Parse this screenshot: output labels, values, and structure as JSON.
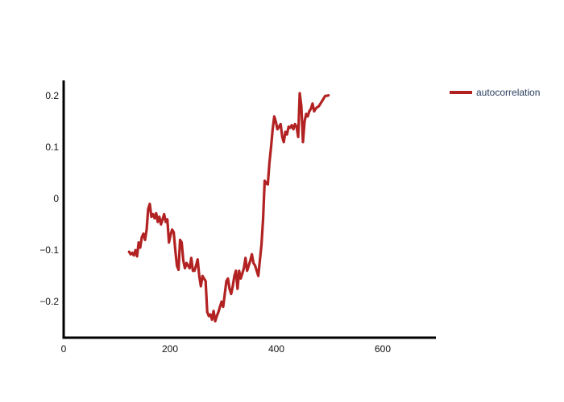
{
  "chart_data": {
    "type": "line",
    "title": "",
    "xlabel": "",
    "ylabel": "",
    "xlim": [
      0,
      700
    ],
    "ylim": [
      -0.27,
      0.23
    ],
    "x_ticks": [
      0,
      200,
      400,
      600
    ],
    "x_tick_labels": [
      "0",
      "200",
      "400",
      "600"
    ],
    "y_ticks": [
      -0.2,
      -0.1,
      0,
      0.1,
      0.2
    ],
    "y_tick_labels": [
      "−0.2",
      "−0.1",
      "0",
      "0.1",
      "0.2"
    ],
    "grid": false,
    "legend_position": "top-right",
    "series": [
      {
        "name": "autocorrelation",
        "color": "#b22222",
        "x": [
          123,
          126,
          129,
          132,
          135,
          138,
          141,
          144,
          147,
          150,
          153,
          156,
          159,
          162,
          165,
          168,
          171,
          174,
          177,
          180,
          183,
          186,
          189,
          192,
          195,
          198,
          201,
          204,
          207,
          210,
          213,
          216,
          219,
          222,
          225,
          228,
          231,
          234,
          237,
          240,
          243,
          246,
          249,
          252,
          255,
          258,
          261,
          264,
          267,
          270,
          273,
          276,
          279,
          282,
          285,
          288,
          291,
          294,
          297,
          300,
          303,
          306,
          309,
          312,
          315,
          318,
          321,
          324,
          327,
          330,
          333,
          336,
          339,
          342,
          345,
          348,
          351,
          354,
          357,
          360,
          363,
          366,
          369,
          372,
          375,
          378,
          381,
          384,
          387,
          390,
          393,
          396,
          399,
          402,
          405,
          408,
          411,
          414,
          417,
          420,
          423,
          426,
          429,
          432,
          435,
          438,
          441,
          444,
          447,
          450,
          453,
          456,
          459,
          462,
          465,
          468,
          471,
          474,
          477,
          480,
          483,
          486,
          489,
          492,
          495,
          498
        ],
        "values": [
          -0.103,
          -0.108,
          -0.105,
          -0.11,
          -0.1,
          -0.112,
          -0.085,
          -0.095,
          -0.075,
          -0.068,
          -0.08,
          -0.06,
          -0.02,
          -0.01,
          -0.035,
          -0.03,
          -0.038,
          -0.028,
          -0.045,
          -0.035,
          -0.05,
          -0.04,
          -0.03,
          -0.045,
          -0.04,
          -0.085,
          -0.07,
          -0.06,
          -0.065,
          -0.1,
          -0.13,
          -0.138,
          -0.08,
          -0.085,
          -0.12,
          -0.135,
          -0.125,
          -0.13,
          -0.135,
          -0.115,
          -0.14,
          -0.14,
          -0.13,
          -0.118,
          -0.15,
          -0.17,
          -0.15,
          -0.155,
          -0.16,
          -0.22,
          -0.228,
          -0.225,
          -0.235,
          -0.218,
          -0.238,
          -0.228,
          -0.22,
          -0.21,
          -0.2,
          -0.21,
          -0.185,
          -0.16,
          -0.155,
          -0.175,
          -0.185,
          -0.17,
          -0.15,
          -0.14,
          -0.175,
          -0.14,
          -0.155,
          -0.145,
          -0.135,
          -0.115,
          -0.14,
          -0.13,
          -0.12,
          -0.108,
          -0.125,
          -0.13,
          -0.14,
          -0.15,
          -0.12,
          -0.09,
          -0.04,
          0.035,
          0.03,
          0.028,
          0.07,
          0.1,
          0.135,
          0.16,
          0.15,
          0.135,
          0.14,
          0.145,
          0.12,
          0.11,
          0.13,
          0.125,
          0.14,
          0.138,
          0.143,
          0.135,
          0.145,
          0.14,
          0.12,
          0.205,
          0.18,
          0.11,
          0.15,
          0.165,
          0.16,
          0.17,
          0.175,
          0.185,
          0.17,
          0.175,
          0.178,
          0.18,
          0.185,
          0.19,
          0.195,
          0.2,
          0.2,
          0.201
        ]
      }
    ]
  }
}
